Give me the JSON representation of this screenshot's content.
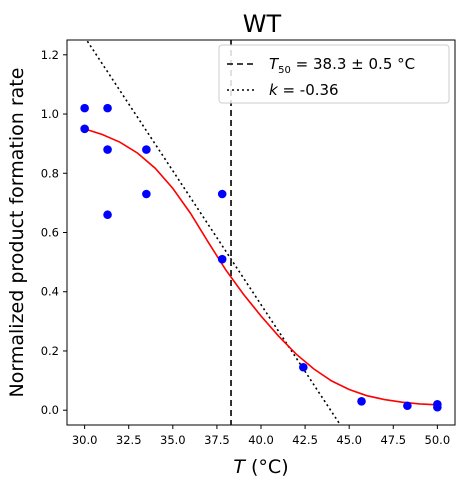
{
  "chart_data": {
    "type": "scatter",
    "title": "WT",
    "xlabel_var": "T",
    "xlabel_unit": " (°C)",
    "ylabel": "Normalized product formation rate",
    "xlim": [
      29.0,
      51.0
    ],
    "ylim": [
      -0.05,
      1.25
    ],
    "xticks": [
      30.0,
      32.5,
      35.0,
      37.5,
      40.0,
      42.5,
      45.0,
      47.5,
      50.0
    ],
    "xtick_labels": [
      "30.0",
      "32.5",
      "35.0",
      "37.5",
      "40.0",
      "42.5",
      "45.0",
      "47.5",
      "50.0"
    ],
    "yticks": [
      0.0,
      0.2,
      0.4,
      0.6,
      0.8,
      1.0,
      1.2
    ],
    "ytick_labels": [
      "0.0",
      "0.2",
      "0.4",
      "0.6",
      "0.8",
      "1.0",
      "1.2"
    ],
    "points": {
      "color": "#0000ff",
      "x": [
        30.0,
        30.0,
        31.3,
        31.3,
        31.3,
        33.5,
        33.5,
        37.8,
        37.8,
        42.4,
        45.7,
        48.3,
        50.0,
        50.0
      ],
      "y": [
        1.02,
        0.95,
        1.02,
        0.88,
        0.66,
        0.88,
        0.73,
        0.73,
        0.51,
        0.145,
        0.03,
        0.015,
        0.02,
        0.01
      ]
    },
    "fit_curve": {
      "color": "#ff0000",
      "style": "solid",
      "x": [
        30.0,
        31.0,
        32.0,
        33.0,
        34.0,
        35.0,
        36.0,
        37.0,
        38.0,
        39.0,
        40.0,
        41.0,
        42.0,
        43.0,
        44.0,
        45.0,
        46.0,
        47.0,
        48.0,
        49.0,
        50.0
      ],
      "y": [
        0.95,
        0.931,
        0.905,
        0.868,
        0.817,
        0.749,
        0.665,
        0.568,
        0.474,
        0.392,
        0.318,
        0.25,
        0.189,
        0.139,
        0.099,
        0.07,
        0.049,
        0.036,
        0.027,
        0.021,
        0.018
      ]
    },
    "t50_line": {
      "x": 38.3,
      "style": "dashed",
      "color": "#000000"
    },
    "slope_line": {
      "x": [
        30.0,
        44.5
      ],
      "y": [
        1.26,
        -0.05
      ],
      "style": "dotted",
      "color": "#000000"
    },
    "legend": {
      "position": "top-right",
      "entries": [
        {
          "style": "dashed",
          "var": "T",
          "sub": "50",
          "text": " = 38.3 ± 0.5 °C"
        },
        {
          "style": "dotted",
          "var": "k",
          "sub": "",
          "text": " = -0.36"
        }
      ]
    }
  }
}
